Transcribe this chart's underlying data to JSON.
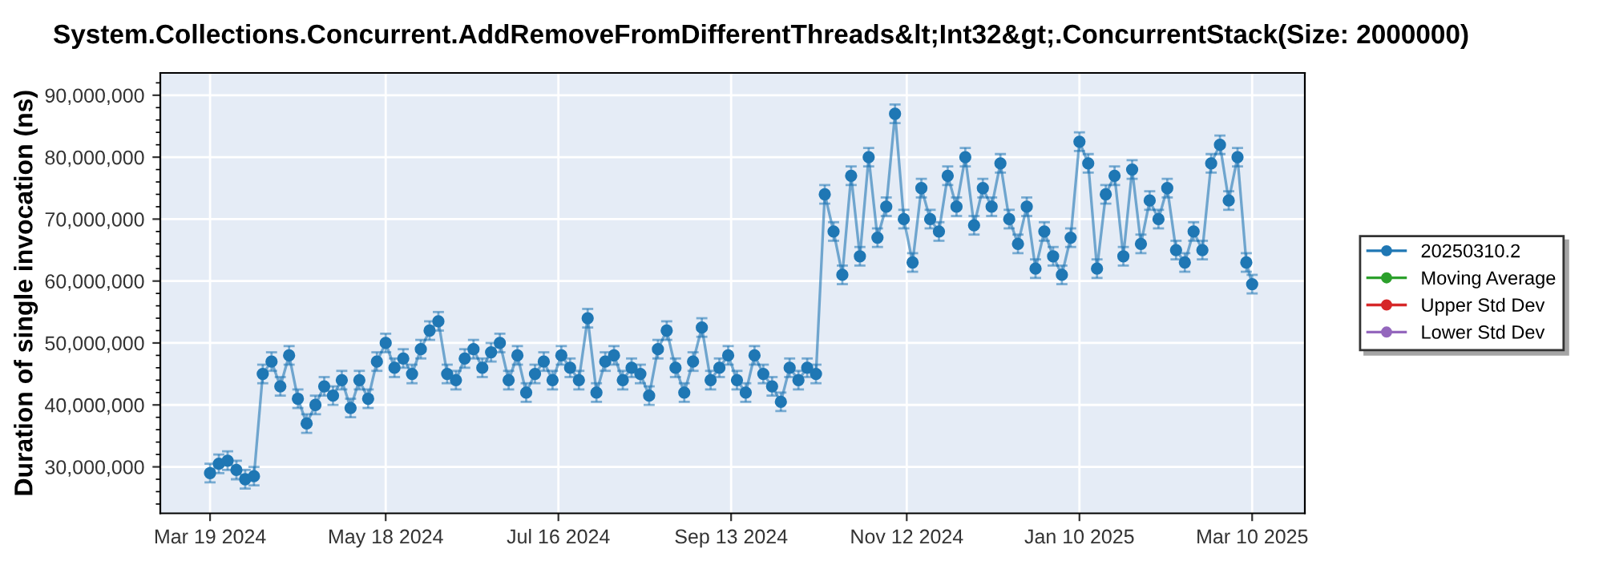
{
  "chart_data": {
    "type": "line",
    "title": "System.Collections.Concurrent.AddRemoveFromDifferentThreads&lt;Int32&gt;.ConcurrentStack(Size: 2000000)",
    "ylabel": "Duration of single invocation (ns)",
    "x": [
      "2024-03-19",
      "2024-03-22",
      "2024-03-25",
      "2024-03-28",
      "2024-03-31",
      "2024-04-03",
      "2024-04-06",
      "2024-04-09",
      "2024-04-12",
      "2024-04-15",
      "2024-04-18",
      "2024-04-21",
      "2024-04-24",
      "2024-04-27",
      "2024-04-30",
      "2024-05-03",
      "2024-05-06",
      "2024-05-09",
      "2024-05-12",
      "2024-05-15",
      "2024-05-18",
      "2024-05-21",
      "2024-05-24",
      "2024-05-27",
      "2024-05-30",
      "2024-06-02",
      "2024-06-05",
      "2024-06-08",
      "2024-06-11",
      "2024-06-14",
      "2024-06-17",
      "2024-06-20",
      "2024-06-23",
      "2024-06-26",
      "2024-06-29",
      "2024-07-02",
      "2024-07-05",
      "2024-07-08",
      "2024-07-11",
      "2024-07-14",
      "2024-07-17",
      "2024-07-20",
      "2024-07-23",
      "2024-07-26",
      "2024-07-29",
      "2024-08-01",
      "2024-08-04",
      "2024-08-07",
      "2024-08-10",
      "2024-08-13",
      "2024-08-16",
      "2024-08-19",
      "2024-08-22",
      "2024-08-25",
      "2024-08-28",
      "2024-08-31",
      "2024-09-03",
      "2024-09-06",
      "2024-09-09",
      "2024-09-12",
      "2024-09-15",
      "2024-09-18",
      "2024-09-21",
      "2024-09-24",
      "2024-09-27",
      "2024-09-30",
      "2024-10-03",
      "2024-10-06",
      "2024-10-09",
      "2024-10-12",
      "2024-10-15",
      "2024-10-18",
      "2024-10-21",
      "2024-10-24",
      "2024-10-27",
      "2024-10-30",
      "2024-11-02",
      "2024-11-05",
      "2024-11-08",
      "2024-11-11",
      "2024-11-14",
      "2024-11-17",
      "2024-11-20",
      "2024-11-23",
      "2024-11-26",
      "2024-11-29",
      "2024-12-02",
      "2024-12-05",
      "2024-12-08",
      "2024-12-11",
      "2024-12-14",
      "2024-12-17",
      "2024-12-20",
      "2024-12-23",
      "2024-12-26",
      "2024-12-29",
      "2025-01-01",
      "2025-01-04",
      "2025-01-07",
      "2025-01-10",
      "2025-01-13",
      "2025-01-16",
      "2025-01-19",
      "2025-01-22",
      "2025-01-25",
      "2025-01-28",
      "2025-01-31",
      "2025-02-03",
      "2025-02-06",
      "2025-02-09",
      "2025-02-12",
      "2025-02-15",
      "2025-02-18",
      "2025-02-21",
      "2025-02-24",
      "2025-02-27",
      "2025-03-02",
      "2025-03-05",
      "2025-03-08",
      "2025-03-10"
    ],
    "series": [
      {
        "name": "20250310.2",
        "color": "#1f77b4",
        "values": [
          29000000,
          30500000,
          31000000,
          29500000,
          28000000,
          28500000,
          45000000,
          47000000,
          43000000,
          48000000,
          41000000,
          37000000,
          40000000,
          43000000,
          41500000,
          44000000,
          39500000,
          44000000,
          41000000,
          47000000,
          50000000,
          46000000,
          47500000,
          45000000,
          49000000,
          52000000,
          53500000,
          45000000,
          44000000,
          47500000,
          49000000,
          46000000,
          48500000,
          50000000,
          44000000,
          48000000,
          42000000,
          45000000,
          47000000,
          44000000,
          48000000,
          46000000,
          44000000,
          54000000,
          42000000,
          47000000,
          48000000,
          44000000,
          46000000,
          45000000,
          41500000,
          49000000,
          52000000,
          46000000,
          42000000,
          47000000,
          52500000,
          44000000,
          46000000,
          48000000,
          44000000,
          42000000,
          48000000,
          45000000,
          43000000,
          40500000,
          46000000,
          44000000,
          46000000,
          45000000,
          74000000,
          68000000,
          61000000,
          77000000,
          64000000,
          80000000,
          67000000,
          72000000,
          87000000,
          70000000,
          63000000,
          75000000,
          70000000,
          68000000,
          77000000,
          72000000,
          80000000,
          69000000,
          75000000,
          72000000,
          79000000,
          70000000,
          66000000,
          72000000,
          62000000,
          68000000,
          64000000,
          61000000,
          67000000,
          82500000,
          79000000,
          62000000,
          74000000,
          77000000,
          64000000,
          78000000,
          66000000,
          73000000,
          70000000,
          75000000,
          65000000,
          63000000,
          68000000,
          65000000,
          79000000,
          82000000,
          73000000,
          80000000,
          63000000,
          59500000
        ],
        "errors": [
          1500000,
          1500000,
          1500000,
          1500000,
          1500000,
          1500000,
          1500000,
          1500000,
          1500000,
          1500000,
          1500000,
          1500000,
          1500000,
          1500000,
          1500000,
          1500000,
          1500000,
          1500000,
          1500000,
          1500000,
          1500000,
          1500000,
          1500000,
          1500000,
          1500000,
          1500000,
          1500000,
          1500000,
          1500000,
          1500000,
          1500000,
          1500000,
          1500000,
          1500000,
          1500000,
          1500000,
          1500000,
          1500000,
          1500000,
          1500000,
          1500000,
          1500000,
          1500000,
          1500000,
          1500000,
          1500000,
          1500000,
          1500000,
          1500000,
          1500000,
          1500000,
          1500000,
          1500000,
          1500000,
          1500000,
          1500000,
          1500000,
          1500000,
          1500000,
          1500000,
          1500000,
          1500000,
          1500000,
          1500000,
          1500000,
          1500000,
          1500000,
          1500000,
          1500000,
          1500000,
          1500000,
          1500000,
          1500000,
          1500000,
          1500000,
          1500000,
          1500000,
          1500000,
          1500000,
          1500000,
          1500000,
          1500000,
          1500000,
          1500000,
          1500000,
          1500000,
          1500000,
          1500000,
          1500000,
          1500000,
          1500000,
          1500000,
          1500000,
          1500000,
          1500000,
          1500000,
          1500000,
          1500000,
          1500000,
          1500000,
          1500000,
          1500000,
          1500000,
          1500000,
          1500000,
          1500000,
          1500000,
          1500000,
          1500000,
          1500000,
          1500000,
          1500000,
          1500000,
          1500000,
          1500000,
          1500000,
          1500000,
          1500000,
          1500000,
          1500000
        ]
      },
      {
        "name": "Moving Average",
        "color": "#2ca02c",
        "values": [
          null,
          null,
          null,
          null,
          null,
          null,
          null,
          null,
          null,
          null,
          null,
          null,
          null,
          null,
          null,
          null,
          null,
          null,
          null,
          null,
          null,
          null,
          null,
          null,
          null,
          null,
          null,
          null,
          null,
          null,
          null,
          null,
          null,
          null,
          null,
          null,
          null,
          null,
          null,
          null,
          null,
          null,
          null,
          null,
          null,
          null,
          null,
          null,
          null,
          null,
          null,
          null,
          null,
          null,
          null,
          null,
          null,
          null,
          null,
          null,
          null,
          null,
          null,
          null,
          null,
          null,
          null,
          null,
          null,
          null,
          null,
          null,
          null,
          null,
          null,
          null,
          null,
          null,
          null,
          null,
          null,
          null,
          null,
          null,
          null,
          null,
          null,
          null,
          null,
          null,
          null,
          null,
          null,
          null,
          null,
          null,
          null,
          null,
          null,
          null,
          null,
          null,
          null,
          null,
          null,
          null,
          null,
          null,
          null,
          null,
          null,
          null,
          null,
          null,
          null,
          null,
          null,
          null,
          null,
          null
        ]
      },
      {
        "name": "Upper Std Dev",
        "color": "#d62728",
        "values": [
          null,
          null,
          null,
          null,
          null,
          null,
          null,
          null,
          null,
          null,
          null,
          null,
          null,
          null,
          null,
          null,
          null,
          null,
          null,
          null,
          null,
          null,
          null,
          null,
          null,
          null,
          null,
          null,
          null,
          null,
          null,
          null,
          null,
          null,
          null,
          null,
          null,
          null,
          null,
          null,
          null,
          null,
          null,
          null,
          null,
          null,
          null,
          null,
          null,
          null,
          null,
          null,
          null,
          null,
          null,
          null,
          null,
          null,
          null,
          null,
          null,
          null,
          null,
          null,
          null,
          null,
          null,
          null,
          null,
          null,
          null,
          null,
          null,
          null,
          null,
          null,
          null,
          null,
          null,
          null,
          null,
          null,
          null,
          null,
          null,
          null,
          null,
          null,
          null,
          null,
          null,
          null,
          null,
          null,
          null,
          null,
          null,
          null,
          null,
          null,
          null,
          null,
          null,
          null,
          null,
          null,
          null,
          null,
          null,
          null,
          null,
          null,
          null,
          null,
          null,
          null,
          null,
          null,
          null,
          null
        ]
      },
      {
        "name": "Lower Std Dev",
        "color": "#9467bd",
        "values": [
          null,
          null,
          null,
          null,
          null,
          null,
          null,
          null,
          null,
          null,
          null,
          null,
          null,
          null,
          null,
          null,
          null,
          null,
          null,
          null,
          null,
          null,
          null,
          null,
          null,
          null,
          null,
          null,
          null,
          null,
          null,
          null,
          null,
          null,
          null,
          null,
          null,
          null,
          null,
          null,
          null,
          null,
          null,
          null,
          null,
          null,
          null,
          null,
          null,
          null,
          null,
          null,
          null,
          null,
          null,
          null,
          null,
          null,
          null,
          null,
          null,
          null,
          null,
          null,
          null,
          null,
          null,
          null,
          null,
          null,
          null,
          null,
          null,
          null,
          null,
          null,
          null,
          null,
          null,
          null,
          null,
          null,
          null,
          null,
          null,
          null,
          null,
          null,
          null,
          null,
          null,
          null,
          null,
          null,
          null,
          null,
          null,
          null,
          null,
          null,
          null,
          null,
          null,
          null,
          null,
          null,
          null,
          null,
          null,
          null,
          null,
          null,
          null,
          null,
          null,
          null,
          null,
          null,
          null,
          null
        ]
      }
    ],
    "xlim": [
      "2024-03-02",
      "2025-03-28"
    ],
    "xticks": [
      {
        "value": "2024-03-19",
        "label": "Mar 19 2024"
      },
      {
        "value": "2024-05-18",
        "label": "May 18 2024"
      },
      {
        "value": "2024-07-16",
        "label": "Jul 16 2024"
      },
      {
        "value": "2024-09-13",
        "label": "Sep 13 2024"
      },
      {
        "value": "2024-11-12",
        "label": "Nov 12 2024"
      },
      {
        "value": "2025-01-10",
        "label": "Jan 10 2025"
      },
      {
        "value": "2025-03-10",
        "label": "Mar 10 2025"
      }
    ],
    "ylim": [
      22500000,
      93600000
    ],
    "yticks": [
      {
        "value": 30000000,
        "label": "30,000,000"
      },
      {
        "value": 40000000,
        "label": "40,000,000"
      },
      {
        "value": 50000000,
        "label": "50,000,000"
      },
      {
        "value": 60000000,
        "label": "60,000,000"
      },
      {
        "value": 70000000,
        "label": "70,000,000"
      },
      {
        "value": 80000000,
        "label": "80,000,000"
      },
      {
        "value": 90000000,
        "label": "90,000,000"
      }
    ],
    "grid": true,
    "legend": "right",
    "marker": "circle",
    "line_style": "solid"
  }
}
